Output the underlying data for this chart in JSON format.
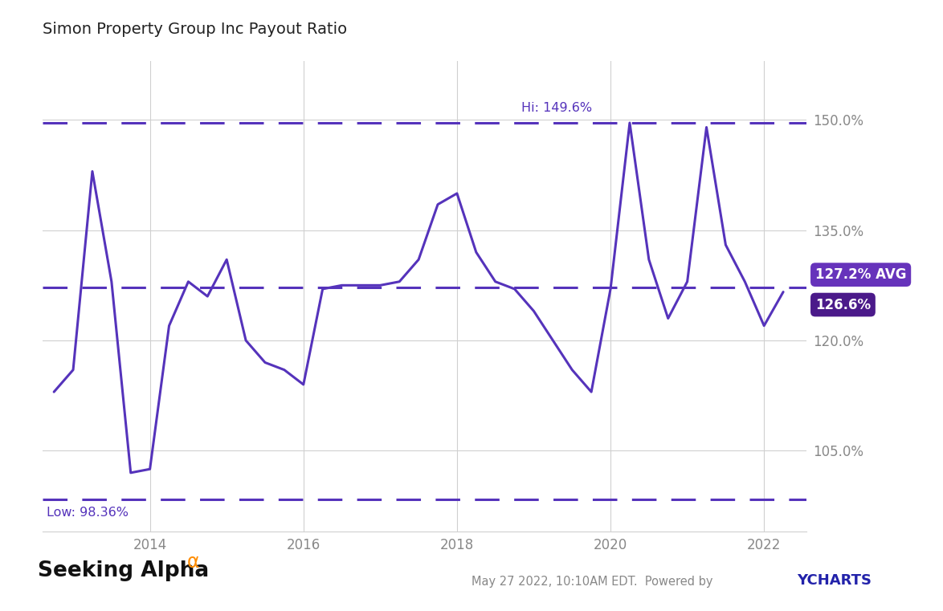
{
  "title": "Simon Property Group Inc Payout Ratio",
  "line_color": "#5533BB",
  "avg_value": 127.2,
  "hi_value": 149.6,
  "low_value": 98.36,
  "current_value": 126.6,
  "background_color": "#ffffff",
  "grid_color": "#d0d0d0",
  "alpha_color": "#FF8C00",
  "ychart_color": "#2222AA",
  "footer_text": "May 27 2022, 10:10AM EDT.  Powered by ",
  "ytick_labels": [
    "105.0%",
    "120.0%",
    "135.0%",
    "150.0%"
  ],
  "ytick_values": [
    105.0,
    120.0,
    135.0,
    150.0
  ],
  "xtick_labels": [
    "2014",
    "2016",
    "2018",
    "2020",
    "2022"
  ],
  "x_data": [
    2012.75,
    2013.0,
    2013.25,
    2013.5,
    2013.75,
    2014.0,
    2014.25,
    2014.5,
    2014.75,
    2015.0,
    2015.25,
    2015.5,
    2015.75,
    2016.0,
    2016.25,
    2016.5,
    2016.75,
    2017.0,
    2017.25,
    2017.5,
    2017.75,
    2018.0,
    2018.25,
    2018.5,
    2018.75,
    2019.0,
    2019.25,
    2019.5,
    2019.75,
    2020.0,
    2020.25,
    2020.5,
    2020.75,
    2021.0,
    2021.25,
    2021.5,
    2021.75,
    2022.0,
    2022.25
  ],
  "y_data": [
    113.0,
    116.0,
    143.0,
    128.0,
    102.0,
    102.5,
    122.0,
    128.0,
    126.0,
    131.0,
    120.0,
    117.0,
    116.0,
    114.0,
    127.0,
    127.5,
    127.5,
    127.5,
    128.0,
    131.0,
    138.5,
    140.0,
    132.0,
    128.0,
    127.0,
    124.0,
    120.0,
    116.0,
    113.0,
    127.0,
    149.6,
    131.0,
    123.0,
    128.0,
    149.0,
    133.0,
    128.0,
    122.0,
    126.6
  ],
  "xlim": [
    2012.6,
    2022.55
  ],
  "ylim": [
    94.0,
    158.0
  ],
  "avg_box_color": "#6633BB",
  "cur_box_color": "#5522AA"
}
